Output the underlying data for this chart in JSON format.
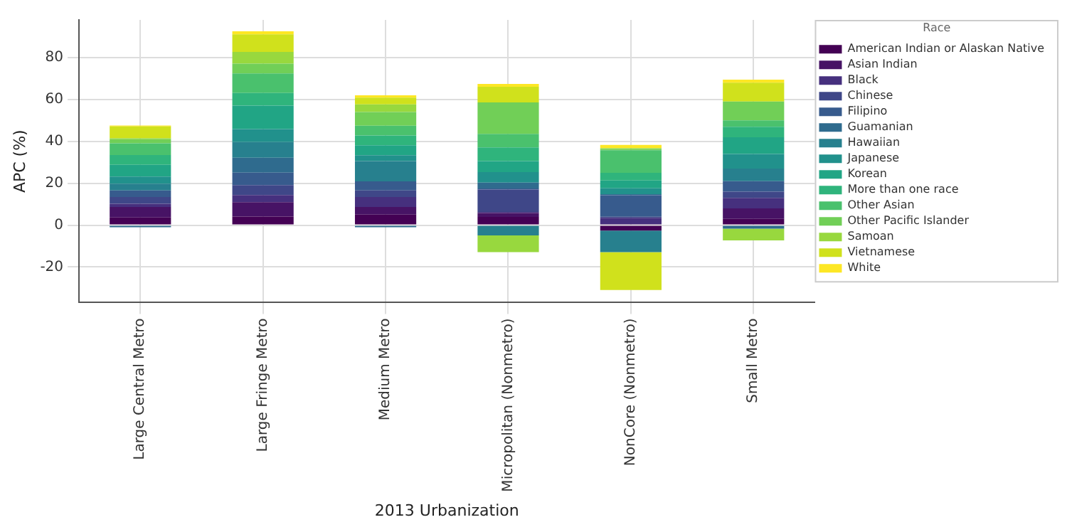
{
  "chart_data": {
    "type": "bar",
    "stacked": true,
    "xlabel": "2013 Urbanization",
    "ylabel": "APC (%)",
    "legend_title": "Race",
    "legend": "top right",
    "grid": true,
    "categories": [
      "Large Central Metro",
      "Large Fringe Metro",
      "Medium Metro",
      "Micropolitan (Nonmetro)",
      "NonCore (Nonmetro)",
      "Small Metro"
    ],
    "ylim": [
      -37,
      98
    ],
    "yticks": [
      -20,
      0,
      20,
      40,
      60,
      80
    ],
    "series": [
      {
        "name": "American Indian or Alaskan Native",
        "color": "#440154",
        "values": [
          3.7,
          4.1,
          5,
          3.9,
          -2.6,
          3
        ]
      },
      {
        "name": "Asian Indian",
        "color": "#471365",
        "values": [
          5,
          6.9,
          3.7,
          1.9,
          0.5,
          5
        ]
      },
      {
        "name": "Black",
        "color": "#46307e",
        "values": [
          1.5,
          3.4,
          4.7,
          0.5,
          3,
          5
        ]
      },
      {
        "name": "Chinese",
        "color": "#3f4788",
        "values": [
          3.2,
          4.7,
          3.2,
          10.7,
          0.5,
          3
        ]
      },
      {
        "name": "Filipino",
        "color": "#375b8d",
        "values": [
          3.2,
          6,
          4.3,
          0.5,
          10.3,
          5
        ]
      },
      {
        "name": "Guamanian",
        "color": "#2f6b8e",
        "values": [
          -1,
          7.1,
          -1,
          2.8,
          0.5,
          -1.7
        ]
      },
      {
        "name": "Hawaiian",
        "color": "#27808e",
        "values": [
          3.2,
          7.5,
          9.7,
          -4.9,
          -10.3,
          6
        ]
      },
      {
        "name": "Japanese",
        "color": "#21918c",
        "values": [
          3.4,
          6.2,
          2.8,
          5,
          2.8,
          7
        ]
      },
      {
        "name": "Korean",
        "color": "#21a585",
        "values": [
          5.6,
          11.2,
          4.7,
          5.3,
          3.7,
          8
        ]
      },
      {
        "name": "More than one race",
        "color": "#2fb47c",
        "values": [
          4.7,
          6,
          4.7,
          6.5,
          3.7,
          5
        ]
      },
      {
        "name": "Other Asian",
        "color": "#4ac16d",
        "values": [
          5.6,
          9.3,
          4.7,
          6.5,
          10.8,
          3
        ]
      },
      {
        "name": "Other Pacific Islander",
        "color": "#71cf57",
        "values": [
          1.9,
          4.7,
          6.5,
          15,
          0.5,
          9
        ]
      },
      {
        "name": "Samoan",
        "color": "#98d83e",
        "values": [
          0.5,
          5.6,
          3.7,
          -8,
          0.5,
          -5.6
        ]
      },
      {
        "name": "Vietnamese",
        "color": "#d0e11c",
        "values": [
          5.6,
          8.4,
          3.2,
          7.5,
          -18.1,
          9
        ]
      },
      {
        "name": "White",
        "color": "#fde725",
        "values": [
          0.5,
          1.5,
          1.1,
          1.3,
          1.5,
          1.5
        ]
      }
    ]
  }
}
